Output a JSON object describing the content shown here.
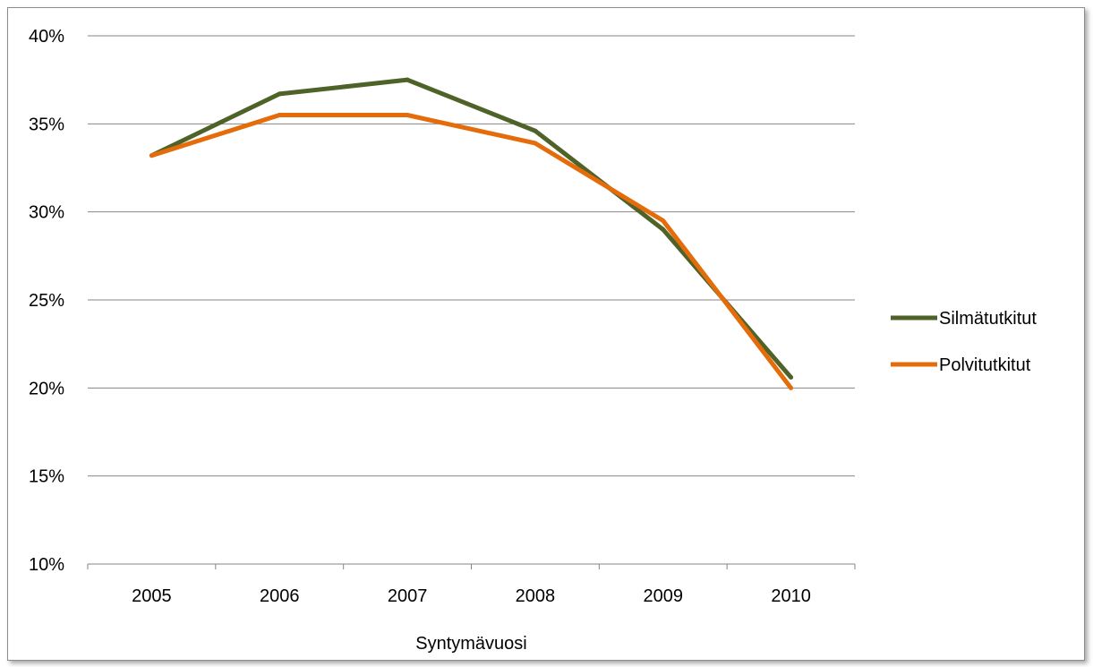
{
  "chart_data": {
    "type": "line",
    "title": "",
    "xlabel": "Syntymävuosi",
    "ylabel": "",
    "categories": [
      "2005",
      "2006",
      "2007",
      "2008",
      "2009",
      "2010"
    ],
    "ylim": [
      0.1,
      0.4
    ],
    "ytick_values": [
      0.1,
      0.15,
      0.2,
      0.25,
      0.3,
      0.35,
      0.4
    ],
    "ytick_labels": [
      "10%",
      "15%",
      "20%",
      "25%",
      "30%",
      "35%",
      "40%"
    ],
    "grid": "horizontal",
    "legend_position": "right",
    "series": [
      {
        "name": "Silmätutkitut",
        "color": "#4f6228",
        "values": [
          0.332,
          0.367,
          0.375,
          0.346,
          0.29,
          0.206
        ]
      },
      {
        "name": "Polvitutkitut",
        "color": "#e46c0a",
        "values": [
          0.332,
          0.355,
          0.355,
          0.339,
          0.295,
          0.2
        ]
      }
    ]
  }
}
